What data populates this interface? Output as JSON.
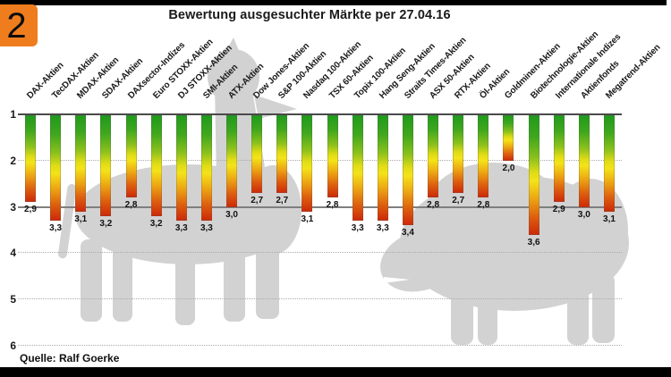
{
  "header": {
    "badge": "2",
    "title": "Bewertung ausgesuchter Märkte per 27.04.16"
  },
  "footer": {
    "source": "Quelle: Ralf Goerke"
  },
  "colors": {
    "accent_orange": "#EF7D1E",
    "frame_black": "#000000",
    "silhouette_gray": "#D2D2D2",
    "dotted_grid_gray": "#ABABAB",
    "mid_line_gray": "#7F7F7F",
    "top_axis_dark": "#4A4A4A",
    "bar_gradient_top_green": "#1F9A1C",
    "bar_gradient_yellow": "#F4E318",
    "bar_gradient_bottom_red": "#CC2808"
  },
  "chart_data": {
    "type": "bar",
    "title": "Bewertung ausgesuchter Märkte per 27.04.16",
    "xlabel": "",
    "ylabel": "",
    "categories": [
      "DAX-Aktien",
      "TecDAX-Aktien",
      "MDAX-Aktien",
      "SDAX-Aktien",
      "DAXsector-Indizes",
      "Euro STOXX-Aktien",
      "DJ STOXX-Aktien",
      "SMI-Aktien",
      "ATX-Aktien",
      "Dow Jones-Aktien",
      "S&P 100-Aktien",
      "Nasdaq 100-Aktien",
      "TSX 60-Aktien",
      "Topix 100-Aktien",
      "Hang Seng-Aktien",
      "Straits Times-Aktien",
      "ASX 50-Aktien",
      "RTX-Aktien",
      "Öl-Aktien",
      "Goldminen-Aktien",
      "Biotechnologie-Aktien",
      "Internationale Indizes",
      "Aktienfonds",
      "Megatrend-Aktien"
    ],
    "values": [
      2.9,
      3.3,
      3.1,
      3.2,
      2.8,
      3.2,
      3.3,
      3.3,
      3.0,
      2.7,
      2.7,
      3.1,
      2.8,
      3.3,
      3.3,
      3.4,
      2.8,
      2.7,
      2.8,
      2.0,
      3.6,
      2.9,
      3.0,
      3.1
    ],
    "value_label_format": "decimal-comma",
    "y_axis": {
      "min": 1,
      "max": 6,
      "ticks": [
        1,
        2,
        3,
        4,
        5,
        6
      ],
      "inverted": true
    },
    "gridlines": {
      "baseline_at": 1,
      "solid_at": 3,
      "dotted_at": [
        2,
        4,
        5,
        6
      ]
    },
    "legend": null,
    "background_shapes": [
      "bull-silhouette",
      "bear-silhouette"
    ]
  }
}
